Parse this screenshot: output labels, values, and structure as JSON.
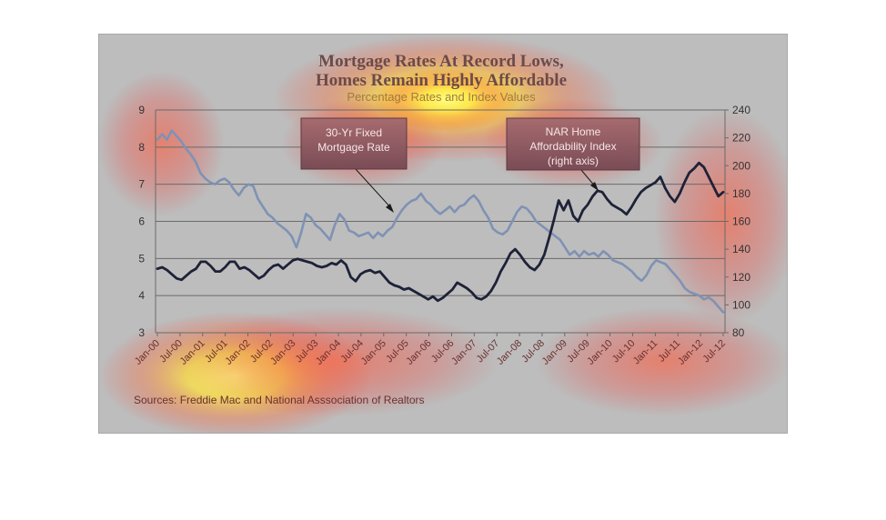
{
  "chart_data": {
    "type": "line",
    "title_lines": [
      "Mortgage Rates At Record Lows,",
      "Homes Remain Highly Affordable"
    ],
    "subtitle": "Percentage Rates and Index Values",
    "y_left": {
      "min": 3,
      "max": 9,
      "ticks": [
        "9",
        "8",
        "7",
        "6",
        "5",
        "4",
        "3"
      ]
    },
    "y_right": {
      "min": 80,
      "max": 240,
      "ticks": [
        "240",
        "220",
        "200",
        "180",
        "160",
        "140",
        "120",
        "100",
        "80"
      ]
    },
    "x_ticks": [
      "Jan-00",
      "Jul-00",
      "Jan-01",
      "Jul-01",
      "Jan-02",
      "Jul-02",
      "Jan-03",
      "Jul-03",
      "Jan-04",
      "Jul-04",
      "Jan-05",
      "Jul-05",
      "Jan-06",
      "Jul-06",
      "Jan-07",
      "Jul-07",
      "Jan-08",
      "Jul-08",
      "Jan-09",
      "Jul-09",
      "Jan-10",
      "Jul-10",
      "Jan-11",
      "Jul-11",
      "Jan-12",
      "Jul-12"
    ],
    "grid": "horizontal",
    "series": [
      {
        "name": "30-Yr Fixed Mortgage Rate",
        "axis": "left",
        "color": "#7f92b4",
        "values": [
          8.2,
          8.35,
          8.2,
          8.45,
          8.3,
          8.15,
          7.95,
          7.8,
          7.6,
          7.3,
          7.15,
          7.05,
          7.0,
          7.1,
          7.15,
          7.05,
          6.85,
          6.7,
          6.9,
          7.0,
          6.95,
          6.6,
          6.4,
          6.2,
          6.1,
          5.95,
          5.85,
          5.75,
          5.6,
          5.3,
          5.7,
          6.2,
          6.1,
          5.9,
          5.8,
          5.65,
          5.5,
          5.9,
          6.2,
          6.05,
          5.75,
          5.7,
          5.6,
          5.65,
          5.7,
          5.55,
          5.7,
          5.6,
          5.75,
          5.85,
          6.1,
          6.3,
          6.45,
          6.55,
          6.6,
          6.75,
          6.55,
          6.45,
          6.3,
          6.2,
          6.3,
          6.4,
          6.25,
          6.4,
          6.45,
          6.6,
          6.7,
          6.55,
          6.3,
          6.1,
          5.8,
          5.7,
          5.65,
          5.75,
          6.0,
          6.25,
          6.4,
          6.35,
          6.2,
          6.0,
          5.9,
          5.8,
          5.7,
          5.6,
          5.5,
          5.3,
          5.1,
          5.2,
          5.05,
          5.2,
          5.1,
          5.15,
          5.05,
          5.2,
          5.1,
          4.95,
          4.9,
          4.85,
          4.75,
          4.65,
          4.5,
          4.4,
          4.55,
          4.8,
          4.95,
          4.9,
          4.85,
          4.7,
          4.55,
          4.4,
          4.2,
          4.1,
          4.05,
          4.0,
          3.9,
          3.95,
          3.85,
          3.7,
          3.55
        ]
      },
      {
        "name": "NAR Home Affordability Index (right axis)",
        "axis": "right",
        "color": "#1e2238",
        "values": [
          126,
          127,
          125,
          122,
          119,
          118,
          121,
          124,
          126,
          131,
          131,
          128,
          124,
          124,
          127,
          131,
          131,
          126,
          127,
          125,
          122,
          119,
          121,
          125,
          128,
          129,
          126,
          129,
          132,
          133,
          132,
          131,
          130,
          128,
          127,
          128,
          130,
          129,
          132,
          129,
          120,
          117,
          122,
          124,
          125,
          123,
          124,
          120,
          116,
          114,
          113,
          111,
          112,
          110,
          108,
          106,
          104,
          106,
          103,
          105,
          108,
          111,
          116,
          114,
          112,
          109,
          105,
          104,
          106,
          110,
          116,
          124,
          130,
          137,
          140,
          136,
          131,
          127,
          125,
          129,
          136,
          148,
          161,
          175,
          168,
          175,
          164,
          160,
          168,
          172,
          178,
          182,
          181,
          176,
          172,
          170,
          168,
          165,
          170,
          176,
          181,
          184,
          186,
          188,
          192,
          184,
          178,
          174,
          180,
          188,
          195,
          198,
          202,
          199,
          192,
          185,
          178,
          181
        ]
      }
    ],
    "annotations": [
      {
        "lines": [
          "30-Yr Fixed",
          "Mortgage Rate"
        ]
      },
      {
        "lines": [
          "NAR Home",
          "Affordability Index",
          "(right axis)"
        ]
      }
    ],
    "source": "Sources:  Freddie Mac and National Asssociation of Realtors",
    "colors": {
      "panel_background": "#bdbdbd",
      "callout_fill": "#915f64",
      "gridline": "#6a6a6a"
    }
  }
}
